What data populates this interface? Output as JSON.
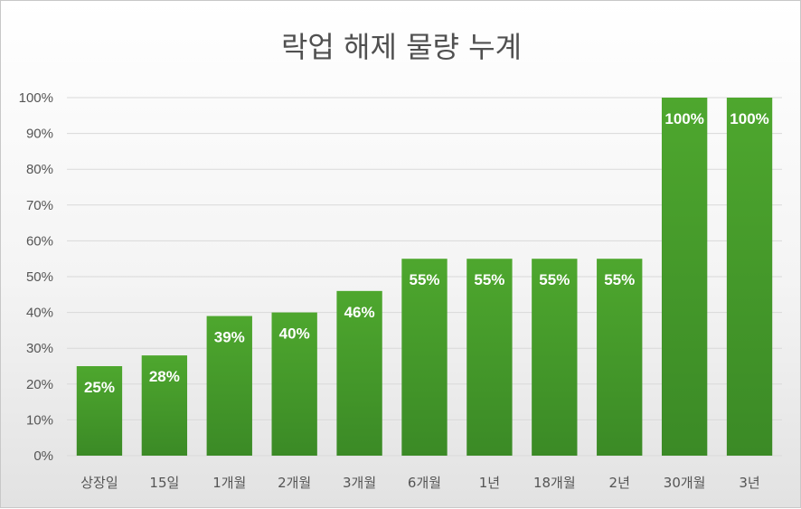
{
  "chart_data": {
    "type": "bar",
    "title": "락업 해제 물량 누계",
    "categories": [
      "상장일",
      "15일",
      "1개월",
      "2개월",
      "3개월",
      "6개월",
      "1년",
      "18개월",
      "2년",
      "30개월",
      "3년"
    ],
    "values": [
      25,
      28,
      39,
      40,
      46,
      55,
      55,
      55,
      55,
      100,
      100
    ],
    "data_labels": [
      "25%",
      "28%",
      "39%",
      "40%",
      "46%",
      "55%",
      "55%",
      "55%",
      "55%",
      "100%",
      "100%"
    ],
    "yticks": [
      "0%",
      "10%",
      "20%",
      "30%",
      "40%",
      "50%",
      "60%",
      "70%",
      "80%",
      "90%",
      "100%"
    ],
    "ylim": [
      0,
      100
    ],
    "grid": true,
    "legend": "none",
    "colors": {
      "bar_top": "#4ea72e",
      "bar_bottom": "#3b8a26",
      "grid": "#d9d9d9"
    }
  }
}
